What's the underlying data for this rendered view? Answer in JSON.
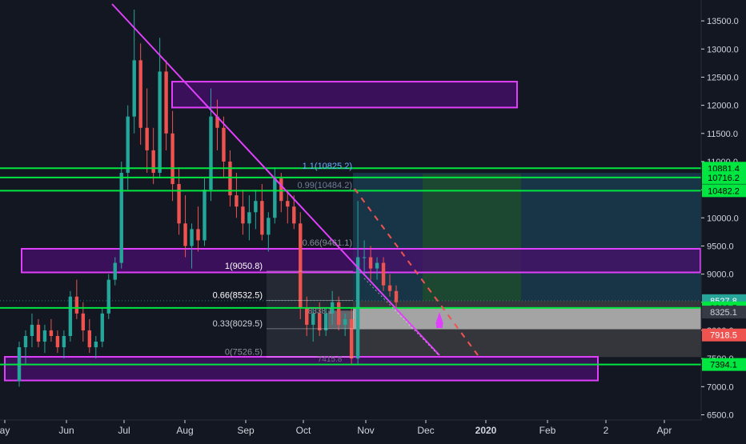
{
  "colors": {
    "background": "#131722",
    "up": "#26a69a",
    "down": "#ef5350",
    "magenta": "#e040fb",
    "purple_fill": "#4a0f6e",
    "green_line": "#00e640",
    "axis_text": "#d1d4dc",
    "teal_zone": "#18384a",
    "green_zone": "#1d4a30",
    "gray_zone": "#3a3a3e",
    "light_zone": "#b7b7b7",
    "fib_blue": "#6ab0ff"
  },
  "chart_data": {
    "type": "candlestick",
    "x_axis": {
      "labels": [
        "ay",
        "Jun",
        "Jul",
        "Aug",
        "Sep",
        "Oct",
        "Nov",
        "Dec",
        "2020",
        "Feb",
        "2",
        "Apr"
      ],
      "highlighted": "2020"
    },
    "y_axis": {
      "ticks": [
        6500,
        7000,
        7500,
        8000,
        8500,
        9000,
        9500,
        10000,
        10500,
        11000,
        11500,
        12000,
        12500,
        13000,
        13500
      ],
      "tick_labels": [
        "6500.0",
        "7000.0",
        "7500.0",
        "8000.0",
        "8500.0",
        "9000.0",
        "9500.0",
        "10000.0",
        "10500.0",
        "11000.0",
        "11500.0",
        "12000.0",
        "12500.0",
        "13000.0",
        "13500.0"
      ],
      "ylim": [
        6450,
        13800
      ]
    },
    "price_line": 8527.8,
    "candles": [
      [
        7100,
        7800,
        7000,
        7700
      ],
      [
        7700,
        8000,
        7400,
        7900
      ],
      [
        7900,
        8300,
        7700,
        8100
      ],
      [
        8100,
        8200,
        7700,
        7800
      ],
      [
        7800,
        8100,
        7600,
        8000
      ],
      [
        8000,
        8200,
        7800,
        7900
      ],
      [
        7900,
        8000,
        7600,
        7700
      ],
      [
        7700,
        8000,
        7500,
        7900
      ],
      [
        7900,
        8700,
        7800,
        8600
      ],
      [
        8600,
        8900,
        8200,
        8300
      ],
      [
        8300,
        8500,
        7800,
        8000
      ],
      [
        8000,
        8200,
        7600,
        7700
      ],
      [
        7700,
        7900,
        7500,
        7800
      ],
      [
        7800,
        8400,
        7700,
        8300
      ],
      [
        8300,
        9000,
        8200,
        8900
      ],
      [
        8900,
        9300,
        8800,
        9200
      ],
      [
        9200,
        11000,
        9100,
        10800
      ],
      [
        10800,
        12000,
        10500,
        11800
      ],
      [
        11800,
        13700,
        11500,
        12800
      ],
      [
        12800,
        13100,
        11300,
        11600
      ],
      [
        11600,
        12300,
        10800,
        11200
      ],
      [
        11200,
        11600,
        10600,
        10800
      ],
      [
        10800,
        13200,
        10700,
        12600
      ],
      [
        12600,
        12800,
        11200,
        11500
      ],
      [
        11500,
        11900,
        10300,
        10600
      ],
      [
        10600,
        10900,
        9700,
        9900
      ],
      [
        9900,
        10400,
        9300,
        9500
      ],
      [
        9500,
        9900,
        9100,
        9800
      ],
      [
        9800,
        10200,
        9400,
        9600
      ],
      [
        9600,
        10700,
        9500,
        10500
      ],
      [
        10500,
        12300,
        10300,
        11800
      ],
      [
        11800,
        12100,
        11200,
        11600
      ],
      [
        11600,
        11800,
        10700,
        11000
      ],
      [
        11000,
        11200,
        10200,
        10400
      ],
      [
        10400,
        10800,
        10000,
        10200
      ],
      [
        10200,
        10500,
        9700,
        9900
      ],
      [
        9900,
        10400,
        9600,
        10100
      ],
      [
        10100,
        10500,
        9800,
        10300
      ],
      [
        10300,
        10600,
        9600,
        9700
      ],
      [
        9700,
        10100,
        9400,
        10000
      ],
      [
        10000,
        10900,
        9900,
        10700
      ],
      [
        10700,
        10800,
        10100,
        10300
      ],
      [
        10300,
        10500,
        9900,
        10200
      ],
      [
        10200,
        10400,
        9800,
        9900
      ],
      [
        9900,
        10100,
        8200,
        8400
      ],
      [
        8400,
        8600,
        7900,
        8100
      ],
      [
        8100,
        8400,
        7800,
        8300
      ],
      [
        8300,
        8500,
        7900,
        8000
      ],
      [
        8000,
        8400,
        7900,
        8300
      ],
      [
        8300,
        8700,
        8100,
        8500
      ],
      [
        8500,
        8600,
        8000,
        8100
      ],
      [
        8100,
        8300,
        7900,
        8200
      ],
      [
        8200,
        8400,
        7400,
        7500
      ],
      [
        7500,
        10300,
        7400,
        9300
      ],
      [
        9300,
        9600,
        9000,
        9300
      ],
      [
        9300,
        9500,
        8900,
        9100
      ],
      [
        9100,
        9300,
        8900,
        9200
      ],
      [
        9200,
        9300,
        8700,
        8800
      ],
      [
        8800,
        9000,
        8600,
        8700
      ],
      [
        8700,
        8800,
        8400,
        8500
      ]
    ],
    "horizontal_levels": [
      10881.4,
      10716.2,
      10482.2,
      8399.5,
      7394.1
    ],
    "fib_levels": [
      {
        "label": "1.1(10825.2)",
        "value": 10825.2
      },
      {
        "label": "0.99(10484.2)",
        "value": 10484.2
      },
      {
        "label": "0.66(9461.1)",
        "value": 9461.1
      },
      {
        "label": "1(9050.8)",
        "value": 9050.8
      },
      {
        "label": "0.66(8532.5)",
        "value": 8532.5
      },
      {
        "label": "0.33(8029.5)",
        "value": 8029.5
      },
      {
        "label": "0(7526.5)",
        "value": 7526.5
      }
    ],
    "price_badges": [
      {
        "text": "10881.4",
        "value": 10881.4,
        "bg": "#00e640",
        "fg": "#000000"
      },
      {
        "text": "10716.2",
        "value": 10716.2,
        "bg": "#00e640",
        "fg": "#000000"
      },
      {
        "text": "10482.2",
        "value": 10482.2,
        "bg": "#00e640",
        "fg": "#000000"
      },
      {
        "text": "8527.8",
        "value": 8527.8,
        "bg": "#26a69a",
        "fg": "#ffffff"
      },
      {
        "text": "8399.5",
        "value": 8399.5,
        "bg": "#00e640",
        "fg": "#000000"
      },
      {
        "text": "8325.1",
        "value": 8325.1,
        "bg": "#363a45",
        "fg": "#d1d4dc"
      },
      {
        "text": "7918.5",
        "value": 7918.5,
        "bg": "#ef5350",
        "fg": "#ffffff"
      },
      {
        "text": "7394.1",
        "value": 7394.1,
        "bg": "#00e640",
        "fg": "#000000"
      }
    ],
    "zones": [
      {
        "kind": "supply",
        "y_top": 12420,
        "y_bottom": 11960
      },
      {
        "kind": "mid",
        "y_top": 9450,
        "y_bottom": 9030
      },
      {
        "kind": "demand",
        "y_top": 7530,
        "y_bottom": 7110
      }
    ],
    "fib_box_labels": [
      "8338.1",
      "7415.8"
    ]
  }
}
